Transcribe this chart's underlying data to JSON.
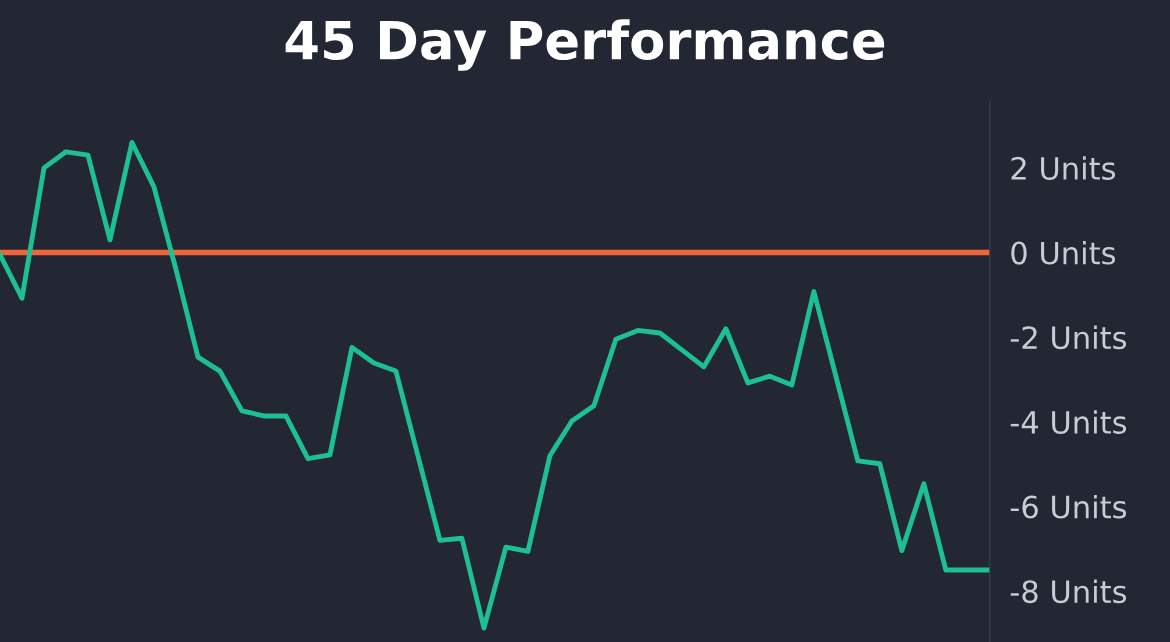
{
  "chart_data": {
    "type": "line",
    "title": "45 Day Performance",
    "categories": [
      null,
      null,
      null,
      null,
      null,
      null,
      null,
      null,
      null,
      null,
      null,
      null,
      null,
      null,
      null,
      null,
      null,
      null,
      null,
      null,
      null,
      null,
      null,
      null,
      null,
      null,
      null,
      null,
      null,
      null,
      null,
      null,
      null,
      null,
      null,
      null,
      null,
      null,
      null,
      null,
      null,
      null,
      null,
      null,
      null,
      null
    ],
    "series": [
      {
        "color": "#1fbf94",
        "values": [
          -0.05,
          -1.08,
          2.0,
          2.38,
          2.3,
          0.3,
          2.6,
          1.55,
          -0.4,
          -2.47,
          -2.8,
          -3.74,
          -3.86,
          -3.86,
          -4.87,
          -4.78,
          -2.24,
          -2.61,
          -2.8,
          -4.8,
          -6.8,
          -6.75,
          -8.87,
          -6.96,
          -7.06,
          -4.8,
          -3.98,
          -3.62,
          -2.05,
          -1.84,
          -1.9,
          -2.3,
          -2.7,
          -1.8,
          -3.08,
          -2.92,
          -3.13,
          -0.92,
          -2.92,
          -4.92,
          -4.99,
          -7.04,
          -5.46,
          -7.5,
          -7.5,
          -7.5
        ]
      }
    ],
    "ylim": [
      -9.2,
      3.6
    ],
    "yticks": [
      {
        "value": 2,
        "label": "2 Units"
      },
      {
        "value": 0,
        "label": "0 Units"
      },
      {
        "value": -2,
        "label": "-2 Units"
      },
      {
        "value": -4,
        "label": "-4 Units"
      },
      {
        "value": -6,
        "label": "-6 Units"
      },
      {
        "value": -8,
        "label": "-8 Units"
      }
    ],
    "ref_lines": [
      {
        "axis": "y",
        "value": 0,
        "color": "#f0643c"
      }
    ],
    "tick_labels": "y",
    "grid": false,
    "legend": false,
    "marker": "none",
    "line_style": "solid"
  }
}
